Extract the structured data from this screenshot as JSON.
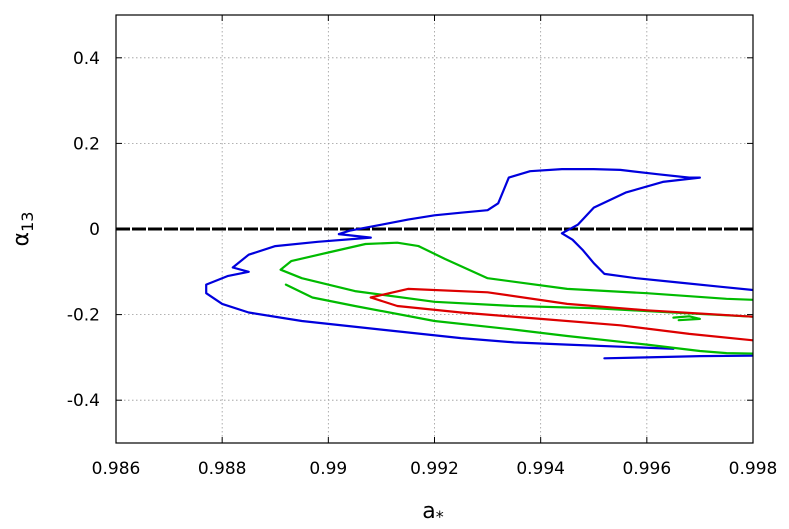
{
  "chart_data": {
    "type": "line",
    "title": "",
    "xlabel": "a",
    "xlabel_subscript": "*",
    "ylabel": "α",
    "ylabel_subscript": "13",
    "xlim": [
      0.986,
      0.998
    ],
    "ylim": [
      -0.5,
      0.5
    ],
    "xticks": [
      0.986,
      0.988,
      0.99,
      0.992,
      0.994,
      0.996,
      0.998
    ],
    "xtick_labels": [
      "0.986",
      "0.988",
      "0.99",
      "0.992",
      "0.994",
      "0.996",
      "0.998"
    ],
    "yticks": [
      0.4,
      0.2,
      0,
      -0.2,
      -0.4
    ],
    "ytick_labels": [
      "0.4",
      "0.2",
      "0",
      "-0.2",
      "-0.4"
    ],
    "grid": true,
    "legend": "none",
    "reference_line": {
      "y": 0,
      "color": "#000000",
      "style": "dashed"
    },
    "series": [
      {
        "color": "#0000dd",
        "segments": [
          [
            [
              0.9902,
              -0.012
            ],
            [
              0.9904,
              -0.004
            ],
            [
              0.991,
              0.01
            ],
            [
              0.9915,
              0.022
            ],
            [
              0.992,
              0.032
            ],
            [
              0.9925,
              0.038
            ],
            [
              0.993,
              0.044
            ],
            [
              0.9932,
              0.06
            ],
            [
              0.9933,
              0.09
            ],
            [
              0.9934,
              0.12
            ],
            [
              0.9938,
              0.135
            ],
            [
              0.9944,
              0.14
            ],
            [
              0.995,
              0.14
            ],
            [
              0.9955,
              0.138
            ],
            [
              0.9962,
              0.128
            ],
            [
              0.9968,
              0.12
            ],
            [
              0.997,
              0.12
            ],
            [
              0.9963,
              0.11
            ],
            [
              0.9956,
              0.085
            ],
            [
              0.995,
              0.05
            ],
            [
              0.9947,
              0.01
            ],
            [
              0.9944,
              -0.01
            ],
            [
              0.9946,
              -0.025
            ],
            [
              0.9948,
              -0.05
            ],
            [
              0.995,
              -0.08
            ],
            [
              0.9952,
              -0.105
            ],
            [
              0.9958,
              -0.115
            ],
            [
              0.9966,
              -0.125
            ],
            [
              0.9974,
              -0.135
            ],
            [
              0.9982,
              -0.145
            ],
            [
              0.999,
              -0.155
            ]
          ],
          [
            [
              0.9902,
              -0.012
            ],
            [
              0.9908,
              -0.02
            ],
            [
              0.9898,
              -0.03
            ],
            [
              0.989,
              -0.04
            ],
            [
              0.9885,
              -0.06
            ],
            [
              0.9882,
              -0.09
            ],
            [
              0.9885,
              -0.1
            ],
            [
              0.9881,
              -0.11
            ],
            [
              0.9877,
              -0.13
            ],
            [
              0.9877,
              -0.15
            ],
            [
              0.988,
              -0.175
            ],
            [
              0.9885,
              -0.195
            ],
            [
              0.9895,
              -0.215
            ],
            [
              0.991,
              -0.235
            ],
            [
              0.9925,
              -0.255
            ],
            [
              0.9935,
              -0.265
            ],
            [
              0.9945,
              -0.27
            ],
            [
              0.9955,
              -0.275
            ],
            [
              0.9965,
              -0.28
            ]
          ],
          [
            [
              0.9952,
              -0.302
            ],
            [
              0.996,
              -0.3
            ],
            [
              0.997,
              -0.297
            ],
            [
              0.998,
              -0.296
            ],
            [
              0.999,
              -0.297
            ]
          ]
        ]
      },
      {
        "color": "#00bb00",
        "segments": [
          [
            [
              0.9917,
              -0.04
            ],
            [
              0.9913,
              -0.032
            ],
            [
              0.9907,
              -0.035
            ],
            [
              0.99,
              -0.055
            ],
            [
              0.9893,
              -0.075
            ],
            [
              0.9891,
              -0.095
            ],
            [
              0.9895,
              -0.115
            ],
            [
              0.9905,
              -0.145
            ],
            [
              0.992,
              -0.17
            ],
            [
              0.9935,
              -0.18
            ],
            [
              0.995,
              -0.185
            ],
            [
              0.9965,
              -0.195
            ],
            [
              0.998,
              -0.205
            ],
            [
              0.999,
              -0.21
            ]
          ],
          [
            [
              0.9917,
              -0.04
            ],
            [
              0.9922,
              -0.07
            ],
            [
              0.993,
              -0.115
            ],
            [
              0.9945,
              -0.14
            ],
            [
              0.996,
              -0.15
            ],
            [
              0.9975,
              -0.163
            ],
            [
              0.999,
              -0.17
            ]
          ],
          [
            [
              0.9892,
              -0.13
            ],
            [
              0.9897,
              -0.16
            ],
            [
              0.9905,
              -0.18
            ],
            [
              0.992,
              -0.215
            ],
            [
              0.9935,
              -0.235
            ],
            [
              0.9945,
              -0.25
            ],
            [
              0.996,
              -0.27
            ],
            [
              0.997,
              -0.285
            ],
            [
              0.9975,
              -0.29
            ],
            [
              0.9985,
              -0.292
            ]
          ],
          [
            [
              0.9965,
              -0.207
            ],
            [
              0.9968,
              -0.204
            ],
            [
              0.997,
              -0.21
            ],
            [
              0.9966,
              -0.213
            ]
          ]
        ]
      },
      {
        "color": "#dd0000",
        "segments": [
          [
            [
              0.9908,
              -0.16
            ],
            [
              0.9915,
              -0.14
            ],
            [
              0.993,
              -0.148
            ],
            [
              0.9945,
              -0.175
            ],
            [
              0.996,
              -0.19
            ],
            [
              0.998,
              -0.205
            ],
            [
              0.999,
              -0.21
            ]
          ],
          [
            [
              0.9908,
              -0.16
            ],
            [
              0.9913,
              -0.18
            ],
            [
              0.9925,
              -0.195
            ],
            [
              0.994,
              -0.21
            ],
            [
              0.9955,
              -0.225
            ],
            [
              0.9968,
              -0.245
            ],
            [
              0.998,
              -0.26
            ],
            [
              0.999,
              -0.265
            ]
          ]
        ]
      }
    ]
  }
}
